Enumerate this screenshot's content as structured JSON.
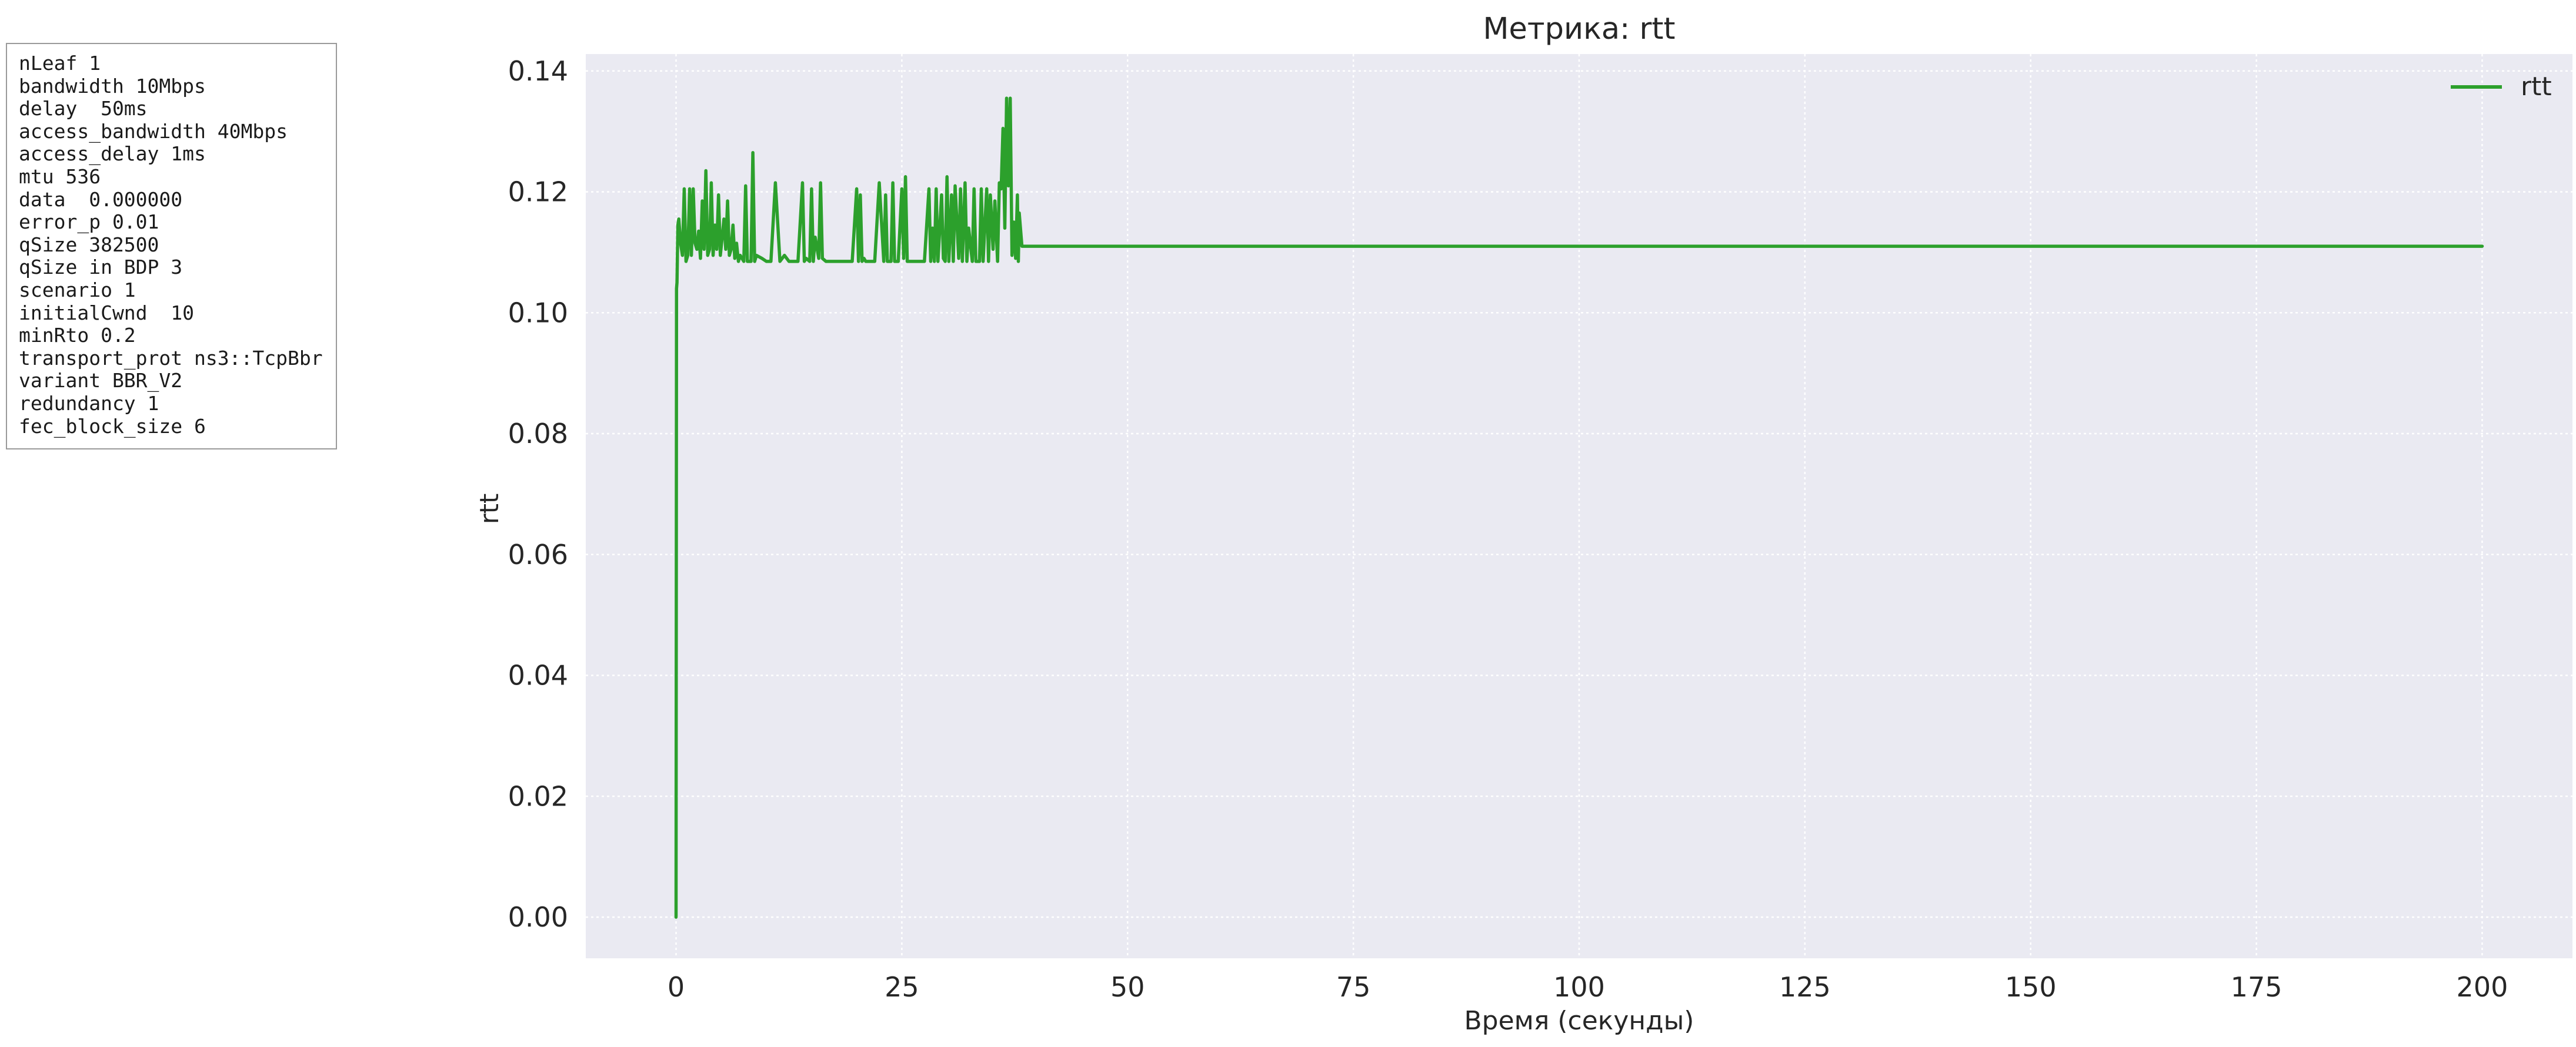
{
  "params": [
    "nLeaf 1",
    "bandwidth 10Mbps",
    "delay  50ms",
    "access_bandwidth 40Mbps",
    "access_delay 1ms",
    "mtu 536",
    "data  0.000000",
    "error_p 0.01",
    "qSize 382500",
    "qSize in BDP 3",
    "scenario 1",
    "initialCwnd  10",
    "minRto 0.2",
    "transport_prot ns3::TcpBbr",
    "variant BBR_V2",
    "redundancy 1",
    "fec_block_size 6"
  ],
  "chart_data": {
    "type": "line",
    "title": "Метрика: rtt",
    "xlabel": "Время (секунды)",
    "ylabel": "rtt",
    "xlim": [
      -10,
      210
    ],
    "ylim": [
      -0.0068,
      0.1428
    ],
    "x_ticks": [
      "0",
      "25",
      "50",
      "75",
      "100",
      "125",
      "150",
      "175",
      "200"
    ],
    "y_ticks": [
      "0.00",
      "0.02",
      "0.04",
      "0.06",
      "0.08",
      "0.10",
      "0.12",
      "0.14"
    ],
    "grid": true,
    "legend_position": "top-right",
    "background": "#eaeaf2",
    "series": [
      {
        "name": "rtt",
        "color": "#2ca02c",
        "x": [
          0.0,
          0.05,
          0.1,
          0.2,
          0.3,
          0.5,
          0.7,
          0.9,
          1.1,
          1.3,
          1.5,
          1.7,
          1.9,
          2.1,
          2.3,
          2.5,
          2.7,
          2.9,
          3.1,
          3.3,
          3.5,
          3.7,
          3.9,
          4.1,
          4.3,
          4.5,
          4.7,
          4.9,
          5.1,
          5.3,
          5.5,
          5.7,
          5.9,
          6.1,
          6.3,
          6.5,
          6.7,
          6.9,
          7.1,
          7.5,
          7.7,
          7.9,
          8.3,
          8.5,
          8.7,
          8.9,
          9.5,
          10.0,
          10.5,
          11.0,
          11.5,
          12.0,
          12.5,
          13.0,
          13.5,
          14.0,
          14.2,
          14.4,
          14.8,
          15.0,
          15.2,
          15.4,
          15.8,
          16.0,
          16.2,
          16.6,
          17.0,
          17.5,
          18.0,
          18.5,
          19.0,
          19.5,
          20.0,
          20.2,
          20.4,
          20.6,
          20.8,
          21.0,
          21.5,
          22.0,
          22.5,
          23.0,
          23.2,
          23.4,
          23.8,
          24.0,
          24.2,
          24.6,
          25.0,
          25.2,
          25.4,
          25.6,
          26.0,
          26.5,
          27.0,
          27.5,
          28.0,
          28.2,
          28.4,
          28.6,
          28.8,
          29.0,
          29.4,
          29.6,
          29.8,
          30.0,
          30.2,
          30.5,
          30.7,
          30.9,
          31.3,
          31.5,
          31.7,
          32.0,
          32.2,
          32.4,
          32.8,
          33.0,
          33.2,
          33.6,
          33.8,
          34.0,
          34.4,
          34.6,
          34.8,
          35.1,
          35.3,
          35.6,
          35.8,
          36.0,
          36.2,
          36.4,
          36.6,
          36.8,
          37.0,
          37.2,
          37.4,
          37.6,
          37.8,
          37.9,
          38.0,
          38.3,
          38.6,
          39.0,
          60.0,
          100.0,
          150.0,
          200.0
        ],
        "y": [
          0.0,
          0.104,
          0.105,
          0.1145,
          0.1155,
          0.1115,
          0.1095,
          0.1205,
          0.1085,
          0.1095,
          0.1205,
          0.1095,
          0.1205,
          0.1115,
          0.1105,
          0.1135,
          0.109,
          0.1185,
          0.1105,
          0.1235,
          0.1095,
          0.1105,
          0.1215,
          0.1095,
          0.1145,
          0.1105,
          0.1195,
          0.1095,
          0.1125,
          0.1155,
          0.1105,
          0.1185,
          0.1095,
          0.1105,
          0.1145,
          0.109,
          0.1115,
          0.1085,
          0.1095,
          0.1085,
          0.121,
          0.1085,
          0.1085,
          0.1265,
          0.1085,
          0.1095,
          0.109,
          0.1085,
          0.1085,
          0.1215,
          0.1085,
          0.1095,
          0.1085,
          0.1085,
          0.1085,
          0.1215,
          0.1085,
          0.109,
          0.1085,
          0.1205,
          0.1085,
          0.1125,
          0.109,
          0.1215,
          0.109,
          0.1085,
          0.1085,
          0.1085,
          0.1085,
          0.1085,
          0.1085,
          0.1085,
          0.1205,
          0.1085,
          0.1195,
          0.1085,
          0.109,
          0.1085,
          0.1085,
          0.1085,
          0.1215,
          0.1085,
          0.1195,
          0.1085,
          0.1085,
          0.1215,
          0.1085,
          0.1085,
          0.1205,
          0.109,
          0.1225,
          0.1085,
          0.1085,
          0.1085,
          0.1085,
          0.1085,
          0.1205,
          0.1085,
          0.114,
          0.1085,
          0.1205,
          0.1085,
          0.1195,
          0.109,
          0.1085,
          0.1225,
          0.1085,
          0.1195,
          0.1085,
          0.121,
          0.109,
          0.1205,
          0.1085,
          0.1215,
          0.1085,
          0.114,
          0.1085,
          0.1205,
          0.1085,
          0.1085,
          0.1205,
          0.1085,
          0.1205,
          0.1085,
          0.1195,
          0.1105,
          0.1185,
          0.1085,
          0.1215,
          0.1205,
          0.1305,
          0.114,
          0.1355,
          0.121,
          0.1355,
          0.1095,
          0.115,
          0.109,
          0.1195,
          0.1085,
          0.1165,
          0.111,
          0.111,
          0.111,
          0.111,
          0.111,
          0.111,
          0.111
        ]
      }
    ]
  }
}
